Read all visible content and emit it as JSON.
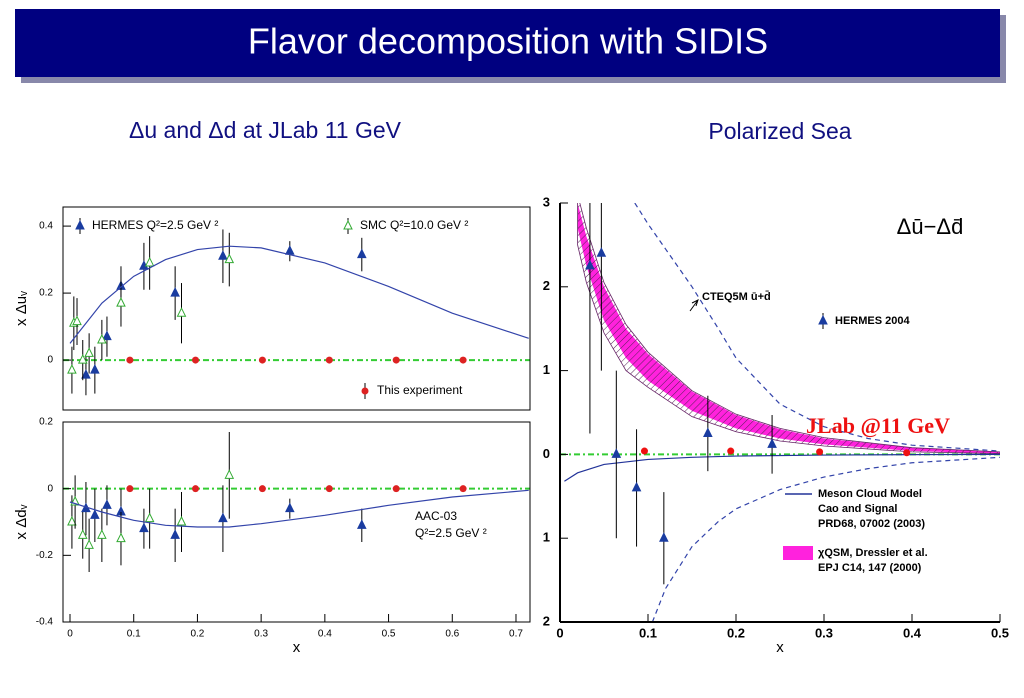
{
  "header": {
    "title": "Flavor decomposition with SIDIS"
  },
  "subtitles": [
    "Δu and Δd  at JLab 11 GeV",
    "Polarized Sea"
  ],
  "chart_data": [
    {
      "type": "scatter",
      "ylabel": "x Δuᵥ",
      "xlim": [
        -0.011,
        0.722
      ],
      "ylim": [
        -0.149,
        0.457
      ],
      "yticks": [
        0,
        0.2,
        0.4
      ],
      "refline": {
        "value": 0,
        "color": "#33cc33"
      },
      "series": [
        {
          "type": "errorbar",
          "name": "HERMES Q²=2.5 GeV ²",
          "marker": "triangle",
          "color": "#1a3ca0",
          "x": [
            0.025,
            0.039,
            0.058,
            0.08,
            0.116,
            0.165,
            0.24,
            0.345,
            0.458
          ],
          "values": [
            -0.045,
            -0.03,
            0.07,
            0.22,
            0.28,
            0.2,
            0.31,
            0.325,
            0.315
          ],
          "errors": [
            0.06,
            0.07,
            0.06,
            0.06,
            0.07,
            0.08,
            0.08,
            0.03,
            0.05
          ]
        },
        {
          "type": "errorbar",
          "name": "SMC Q²=10.0 GeV ²",
          "marker": "open-triangle",
          "color": "#33aa33",
          "x": [
            0.003,
            0.006,
            0.011,
            0.02,
            0.03,
            0.05,
            0.08,
            0.125,
            0.175,
            0.25
          ],
          "values": [
            -0.03,
            0.11,
            0.115,
            0,
            0.02,
            0.06,
            0.17,
            0.29,
            0.14,
            0.3
          ],
          "errors": [
            0.07,
            0.08,
            0.07,
            0.06,
            0.06,
            0.06,
            0.07,
            0.08,
            0.09,
            0.08
          ]
        },
        {
          "type": "errorbar",
          "name": "This experiment",
          "marker": "circle",
          "color": "#dd2222",
          "x": [
            0.094,
            0.197,
            0.302,
            0.407,
            0.512,
            0.617
          ],
          "values": [
            0,
            0,
            0,
            0,
            0,
            0
          ],
          "errors": [
            0.006,
            0.006,
            0.006,
            0.006,
            0.006,
            0.006
          ]
        },
        {
          "type": "line",
          "color": "#3344aa",
          "x": [
            0,
            0.05,
            0.1,
            0.15,
            0.2,
            0.25,
            0.3,
            0.4,
            0.5,
            0.6,
            0.72
          ],
          "values": [
            0.05,
            0.17,
            0.25,
            0.3,
            0.33,
            0.34,
            0.335,
            0.29,
            0.22,
            0.14,
            0.065
          ]
        }
      ]
    },
    {
      "type": "scatter",
      "ylabel": "x Δdᵥ",
      "xlabel": "x",
      "xlim": [
        -0.011,
        0.722
      ],
      "ylim": [
        -0.4,
        0.2
      ],
      "xticks": [
        0,
        0.1,
        0.2,
        0.3,
        0.4,
        0.5,
        0.6,
        0.7
      ],
      "yticks": [
        -0.4,
        -0.2,
        0,
        0.2
      ],
      "refline": {
        "value": 0,
        "color": "#33cc33"
      },
      "annotations": [
        "AAC-03",
        "Q²=2.5 GeV ²"
      ],
      "series": [
        {
          "type": "errorbar",
          "marker": "triangle",
          "color": "#1a3ca0",
          "x": [
            0.025,
            0.039,
            0.058,
            0.08,
            0.116,
            0.165,
            0.24,
            0.345,
            0.458
          ],
          "values": [
            -0.06,
            -0.08,
            -0.05,
            -0.07,
            -0.12,
            -0.14,
            -0.09,
            -0.06,
            -0.11
          ],
          "errors": [
            0.08,
            0.08,
            0.06,
            0.07,
            0.06,
            0.08,
            0.1,
            0.03,
            0.05
          ]
        },
        {
          "type": "errorbar",
          "marker": "open-triangle",
          "color": "#33aa33",
          "x": [
            0.003,
            0.008,
            0.02,
            0.03,
            0.05,
            0.08,
            0.125,
            0.175,
            0.25
          ],
          "values": [
            -0.1,
            -0.04,
            -0.14,
            -0.17,
            -0.14,
            -0.15,
            -0.09,
            -0.1,
            0.04
          ],
          "errors": [
            0.08,
            0.08,
            0.07,
            0.08,
            0.08,
            0.08,
            0.09,
            0.09,
            0.13
          ]
        },
        {
          "type": "errorbar",
          "marker": "circle",
          "color": "#dd2222",
          "x": [
            0.094,
            0.197,
            0.302,
            0.407,
            0.512,
            0.617
          ],
          "values": [
            0,
            0,
            0,
            0,
            0,
            0
          ],
          "errors": [
            0.006,
            0.006,
            0.006,
            0.006,
            0.006,
            0.006
          ]
        },
        {
          "type": "line",
          "color": "#3344aa",
          "x": [
            0,
            0.05,
            0.1,
            0.15,
            0.2,
            0.25,
            0.3,
            0.4,
            0.5,
            0.6,
            0.72
          ],
          "values": [
            -0.04,
            -0.07,
            -0.095,
            -0.11,
            -0.115,
            -0.115,
            -0.105,
            -0.08,
            -0.05,
            -0.025,
            -0.005
          ]
        }
      ]
    },
    {
      "type": "scatter",
      "title": "Δū−Δd̄",
      "xlabel": "x",
      "xlim": [
        0,
        0.5
      ],
      "ylim": [
        -2,
        3
      ],
      "xticks": [
        0,
        0.1,
        0.2,
        0.3,
        0.4,
        0.5
      ],
      "yticks": [
        {
          "value": -2,
          "label": "2"
        },
        {
          "value": -1,
          "label": "1"
        },
        0,
        1,
        2,
        3
      ],
      "refline": {
        "value": 0,
        "color": "#33cc33"
      },
      "series": [
        {
          "type": "band",
          "name": "χQSM, Dressler et al.",
          "ref": [
            "EPJ C14, 147 (2000)"
          ],
          "color": "#ff22dd",
          "x": [
            0.02,
            0.03,
            0.05,
            0.075,
            0.1,
            0.15,
            0.2,
            0.25,
            0.3,
            0.4,
            0.5
          ],
          "upper": [
            3,
            2.6,
            2,
            1.5,
            1.2,
            0.75,
            0.47,
            0.3,
            0.19,
            0.08,
            0.03
          ],
          "lower": [
            2.7,
            2.25,
            1.6,
            1.15,
            0.88,
            0.52,
            0.31,
            0.19,
            0.12,
            0.04,
            0.01
          ]
        },
        {
          "type": "band",
          "pattern": "hatch",
          "color": "#662266",
          "x": [
            0.02,
            0.03,
            0.05,
            0.075,
            0.1,
            0.15,
            0.2,
            0.25,
            0.3,
            0.4,
            0.5
          ],
          "upper": [
            3.1,
            2.7,
            2.05,
            1.55,
            1.22,
            0.76,
            0.48,
            0.31,
            0.2,
            0.08,
            0.03
          ],
          "lower": [
            2.5,
            2.05,
            1.45,
            1,
            0.8,
            0.45,
            0.27,
            0.16,
            0.1,
            0.03,
            0.01
          ]
        },
        {
          "type": "line",
          "name": "Meson Cloud Model",
          "ref": [
            "Cao and Signal",
            "PRD68, 07002 (2003)"
          ],
          "color": "#223399",
          "x": [
            0.005,
            0.02,
            0.05,
            0.1,
            0.15,
            0.2,
            0.3,
            0.4,
            0.5
          ],
          "values": [
            -0.32,
            -0.22,
            -0.12,
            -0.06,
            -0.035,
            -0.02,
            -0.008,
            -0.003,
            0
          ]
        },
        {
          "type": "line",
          "name": "CTEQ5M ū+d̄",
          "dash": true,
          "color": "#3344aa",
          "x": [
            0.085,
            0.1,
            0.12,
            0.15,
            0.18,
            0.2,
            0.25,
            0.3,
            0.35,
            0.4,
            0.5
          ],
          "values": [
            3,
            2.75,
            2.45,
            2,
            1.5,
            1.15,
            0.6,
            0.33,
            0.19,
            0.11,
            0.04
          ]
        },
        {
          "type": "line",
          "dash": true,
          "color": "#3344aa",
          "x": [
            0.105,
            0.12,
            0.15,
            0.18,
            0.2,
            0.25,
            0.3,
            0.35,
            0.4,
            0.5
          ],
          "values": [
            -2,
            -1.6,
            -1.1,
            -0.8,
            -0.65,
            -0.42,
            -0.27,
            -0.17,
            -0.1,
            -0.035
          ]
        },
        {
          "type": "errorbar",
          "name": "HERMES 2004",
          "marker": "triangle",
          "color": "#1a3ca0",
          "x": [
            0.034,
            0.047,
            0.064,
            0.087,
            0.118,
            0.168,
            0.241
          ],
          "values": [
            2.25,
            2.4,
            0,
            -0.4,
            -1,
            0.25,
            0.12
          ],
          "errors": [
            2,
            1.4,
            1,
            0.7,
            0.55,
            0.45,
            0.35
          ]
        },
        {
          "type": "errorbar",
          "name": "JLab @11 GeV",
          "marker": "circle",
          "color": "#ee1111",
          "x": [
            0.096,
            0.194,
            0.295,
            0.394
          ],
          "values": [
            0.04,
            0.04,
            0.03,
            0.02
          ],
          "errors": [
            0.02,
            0.02,
            0.02,
            0.02
          ]
        }
      ]
    }
  ]
}
